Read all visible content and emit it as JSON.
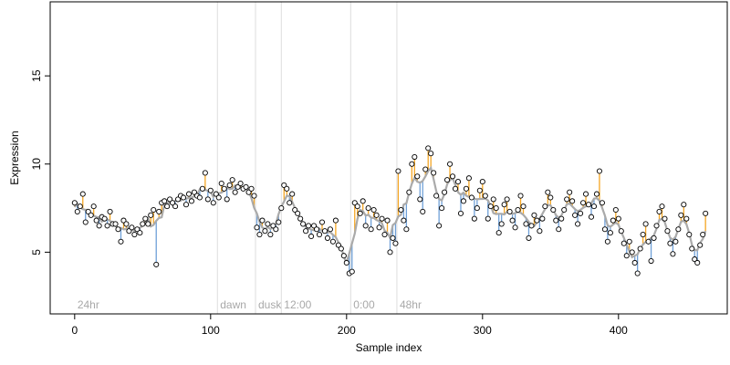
{
  "chart_data": {
    "type": "scatter",
    "xlabel": "Sample index",
    "ylabel": "Expression",
    "xlim": [
      -18,
      480
    ],
    "ylim": [
      1.5,
      19.2
    ],
    "xticks": [
      0,
      100,
      200,
      300,
      400
    ],
    "yticks": [
      5,
      10,
      15
    ],
    "grid": false,
    "legend": "none",
    "colors": {
      "point_fill": "#ffffff",
      "point_stroke": "#000000",
      "fit_line": "#aaaaaa",
      "residual_above": "#f5a623",
      "residual_below": "#6fa0d8",
      "phase_line": "#dddddd",
      "phase_label": "#a8a8a8"
    },
    "phase_markers": [
      {
        "x": 0,
        "label": "24hr",
        "line": false
      },
      {
        "x": 105,
        "label": "dawn",
        "line": true
      },
      {
        "x": 133,
        "label": "dusk",
        "line": true
      },
      {
        "x": 152,
        "label": "12:00",
        "line": true
      },
      {
        "x": 203,
        "label": "0:00",
        "line": true
      },
      {
        "x": 237,
        "label": "48hr",
        "line": true
      }
    ],
    "series": [
      {
        "points": [
          [
            0,
            7.8
          ],
          [
            2,
            7.3
          ],
          [
            4,
            7.6
          ],
          [
            6,
            8.3
          ],
          [
            8,
            6.7
          ],
          [
            10,
            7.3
          ],
          [
            12,
            7.1
          ],
          [
            14,
            7.6
          ],
          [
            16,
            6.8
          ],
          [
            18,
            6.5
          ],
          [
            20,
            7.0
          ],
          [
            22,
            6.9
          ],
          [
            24,
            6.5
          ],
          [
            26,
            7.3
          ],
          [
            28,
            6.6
          ],
          [
            30,
            6.6
          ],
          [
            32,
            6.3
          ],
          [
            34,
            5.6
          ],
          [
            36,
            6.8
          ],
          [
            38,
            6.6
          ],
          [
            40,
            6.2
          ],
          [
            42,
            6.4
          ],
          [
            44,
            6.0
          ],
          [
            46,
            6.3
          ],
          [
            48,
            6.1
          ],
          [
            50,
            6.6
          ],
          [
            52,
            6.9
          ],
          [
            54,
            6.6
          ],
          [
            56,
            7.1
          ],
          [
            58,
            7.4
          ],
          [
            60,
            4.3
          ],
          [
            62,
            7.3
          ],
          [
            64,
            7.8
          ],
          [
            66,
            7.9
          ],
          [
            68,
            7.6
          ],
          [
            70,
            8.0
          ],
          [
            72,
            7.8
          ],
          [
            74,
            7.6
          ],
          [
            76,
            8.0
          ],
          [
            78,
            8.2
          ],
          [
            80,
            8.1
          ],
          [
            82,
            7.7
          ],
          [
            84,
            8.3
          ],
          [
            86,
            7.9
          ],
          [
            88,
            8.4
          ],
          [
            90,
            8.2
          ],
          [
            92,
            8.1
          ],
          [
            94,
            8.6
          ],
          [
            96,
            9.5
          ],
          [
            98,
            8.0
          ],
          [
            100,
            8.5
          ],
          [
            102,
            7.8
          ],
          [
            104,
            8.3
          ],
          [
            106,
            8.1
          ],
          [
            108,
            8.9
          ],
          [
            110,
            8.6
          ],
          [
            112,
            8.0
          ],
          [
            114,
            8.8
          ],
          [
            116,
            9.1
          ],
          [
            118,
            8.4
          ],
          [
            120,
            8.7
          ],
          [
            122,
            8.9
          ],
          [
            124,
            8.6
          ],
          [
            126,
            8.7
          ],
          [
            128,
            8.4
          ],
          [
            130,
            8.6
          ],
          [
            132,
            8.2
          ],
          [
            134,
            6.4
          ],
          [
            136,
            6.0
          ],
          [
            138,
            6.8
          ],
          [
            140,
            6.2
          ],
          [
            142,
            6.6
          ],
          [
            144,
            6.0
          ],
          [
            146,
            6.5
          ],
          [
            148,
            6.3
          ],
          [
            150,
            6.7
          ],
          [
            152,
            7.5
          ],
          [
            154,
            8.8
          ],
          [
            156,
            8.6
          ],
          [
            158,
            7.8
          ],
          [
            160,
            8.3
          ],
          [
            162,
            7.4
          ],
          [
            164,
            7.2
          ],
          [
            166,
            6.9
          ],
          [
            168,
            6.6
          ],
          [
            170,
            6.2
          ],
          [
            172,
            6.5
          ],
          [
            174,
            5.9
          ],
          [
            176,
            6.5
          ],
          [
            178,
            6.3
          ],
          [
            180,
            6.0
          ],
          [
            182,
            6.7
          ],
          [
            184,
            6.2
          ],
          [
            186,
            5.8
          ],
          [
            188,
            6.3
          ],
          [
            190,
            5.6
          ],
          [
            192,
            6.8
          ],
          [
            194,
            5.4
          ],
          [
            196,
            5.2
          ],
          [
            198,
            4.8
          ],
          [
            200,
            4.4
          ],
          [
            202,
            3.8
          ],
          [
            204,
            3.9
          ],
          [
            206,
            7.8
          ],
          [
            208,
            7.6
          ],
          [
            210,
            7.2
          ],
          [
            212,
            7.9
          ],
          [
            214,
            6.5
          ],
          [
            216,
            7.5
          ],
          [
            218,
            6.3
          ],
          [
            220,
            7.4
          ],
          [
            222,
            7.1
          ],
          [
            224,
            6.4
          ],
          [
            226,
            6.9
          ],
          [
            228,
            6.0
          ],
          [
            230,
            6.8
          ],
          [
            232,
            5.0
          ],
          [
            234,
            5.8
          ],
          [
            236,
            5.5
          ],
          [
            238,
            9.6
          ],
          [
            240,
            7.4
          ],
          [
            242,
            6.8
          ],
          [
            244,
            6.3
          ],
          [
            246,
            8.4
          ],
          [
            248,
            10.0
          ],
          [
            250,
            10.4
          ],
          [
            252,
            9.3
          ],
          [
            254,
            8.0
          ],
          [
            256,
            7.3
          ],
          [
            258,
            9.7
          ],
          [
            260,
            10.9
          ],
          [
            262,
            10.6
          ],
          [
            264,
            9.5
          ],
          [
            266,
            8.2
          ],
          [
            268,
            6.5
          ],
          [
            270,
            7.5
          ],
          [
            272,
            8.4
          ],
          [
            274,
            9.1
          ],
          [
            276,
            10.0
          ],
          [
            278,
            9.3
          ],
          [
            280,
            8.6
          ],
          [
            282,
            9.0
          ],
          [
            284,
            7.2
          ],
          [
            286,
            7.9
          ],
          [
            288,
            8.6
          ],
          [
            290,
            9.2
          ],
          [
            292,
            8.1
          ],
          [
            294,
            6.9
          ],
          [
            296,
            7.5
          ],
          [
            298,
            8.5
          ],
          [
            300,
            9.0
          ],
          [
            302,
            8.2
          ],
          [
            304,
            6.9
          ],
          [
            306,
            7.6
          ],
          [
            308,
            8.0
          ],
          [
            310,
            7.5
          ],
          [
            312,
            6.1
          ],
          [
            314,
            6.6
          ],
          [
            316,
            7.7
          ],
          [
            318,
            8.0
          ],
          [
            320,
            7.3
          ],
          [
            322,
            6.8
          ],
          [
            324,
            6.4
          ],
          [
            326,
            7.4
          ],
          [
            328,
            8.2
          ],
          [
            330,
            7.6
          ],
          [
            332,
            6.6
          ],
          [
            334,
            5.8
          ],
          [
            336,
            6.5
          ],
          [
            338,
            7.1
          ],
          [
            340,
            6.8
          ],
          [
            342,
            6.2
          ],
          [
            344,
            6.9
          ],
          [
            346,
            7.6
          ],
          [
            348,
            8.4
          ],
          [
            350,
            8.1
          ],
          [
            352,
            7.4
          ],
          [
            354,
            6.8
          ],
          [
            356,
            6.3
          ],
          [
            358,
            6.9
          ],
          [
            360,
            7.4
          ],
          [
            362,
            8.0
          ],
          [
            364,
            8.4
          ],
          [
            366,
            7.9
          ],
          [
            368,
            7.1
          ],
          [
            370,
            6.6
          ],
          [
            372,
            7.2
          ],
          [
            374,
            7.8
          ],
          [
            376,
            8.3
          ],
          [
            378,
            7.7
          ],
          [
            380,
            7.0
          ],
          [
            382,
            7.6
          ],
          [
            384,
            8.3
          ],
          [
            386,
            9.6
          ],
          [
            388,
            7.8
          ],
          [
            390,
            6.3
          ],
          [
            392,
            5.6
          ],
          [
            394,
            6.1
          ],
          [
            396,
            6.8
          ],
          [
            398,
            7.4
          ],
          [
            400,
            6.9
          ],
          [
            402,
            6.2
          ],
          [
            404,
            5.5
          ],
          [
            406,
            4.8
          ],
          [
            408,
            5.6
          ],
          [
            410,
            5.0
          ],
          [
            412,
            4.4
          ],
          [
            414,
            3.8
          ],
          [
            416,
            5.2
          ],
          [
            418,
            6.0
          ],
          [
            420,
            6.6
          ],
          [
            422,
            5.6
          ],
          [
            424,
            4.5
          ],
          [
            426,
            5.8
          ],
          [
            428,
            6.5
          ],
          [
            430,
            7.3
          ],
          [
            432,
            7.6
          ],
          [
            434,
            6.9
          ],
          [
            436,
            6.2
          ],
          [
            438,
            5.5
          ],
          [
            440,
            4.9
          ],
          [
            442,
            5.6
          ],
          [
            444,
            6.3
          ],
          [
            446,
            7.1
          ],
          [
            448,
            7.7
          ],
          [
            450,
            6.9
          ],
          [
            452,
            6.0
          ],
          [
            454,
            5.2
          ],
          [
            456,
            4.6
          ],
          [
            458,
            4.4
          ],
          [
            460,
            5.4
          ],
          [
            462,
            6.0
          ],
          [
            464,
            7.2
          ]
        ]
      }
    ]
  }
}
